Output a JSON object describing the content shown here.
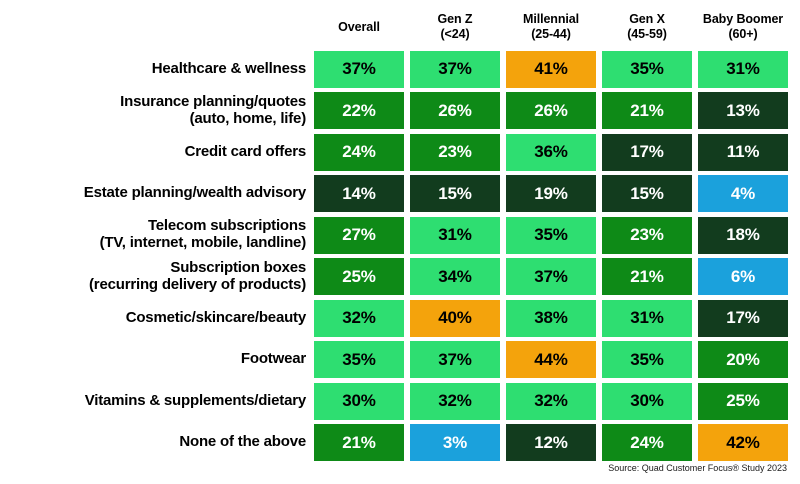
{
  "colors": {
    "background": "#ffffff",
    "tones": {
      "light": {
        "bg": "#2EDE71",
        "fg": "#000000"
      },
      "medium": {
        "bg": "#0E8A17",
        "fg": "#ffffff"
      },
      "dark": {
        "bg": "#123C1E",
        "fg": "#ffffff"
      },
      "blue": {
        "bg": "#1BA1DC",
        "fg": "#ffffff"
      },
      "orange": {
        "bg": "#F4A30C",
        "fg": "#000000"
      }
    }
  },
  "chart_data": {
    "type": "heatmap",
    "title": "",
    "unit": "%",
    "legend_position": "none",
    "columns": [
      {
        "name": "Overall",
        "range": ""
      },
      {
        "name": "Gen Z",
        "range": "(<24)"
      },
      {
        "name": "Millennial",
        "range": "(25-44)"
      },
      {
        "name": "Gen X",
        "range": "(45-59)"
      },
      {
        "name": "Baby Boomer",
        "range": "(60+)"
      }
    ],
    "rows": [
      {
        "label_lines": [
          "Healthcare & wellness"
        ],
        "values": [
          37,
          37,
          41,
          35,
          31
        ],
        "tones": [
          "light",
          "light",
          "orange",
          "light",
          "light"
        ]
      },
      {
        "label_lines": [
          "Insurance planning/quotes",
          "(auto, home, life)"
        ],
        "values": [
          22,
          26,
          26,
          21,
          13
        ],
        "tones": [
          "medium",
          "medium",
          "medium",
          "medium",
          "dark"
        ]
      },
      {
        "label_lines": [
          "Credit card offers"
        ],
        "values": [
          24,
          23,
          36,
          17,
          11
        ],
        "tones": [
          "medium",
          "medium",
          "light",
          "dark",
          "dark"
        ]
      },
      {
        "label_lines": [
          "Estate planning/wealth advisory"
        ],
        "values": [
          14,
          15,
          19,
          15,
          4
        ],
        "tones": [
          "dark",
          "dark",
          "dark",
          "dark",
          "blue"
        ]
      },
      {
        "label_lines": [
          "Telecom subscriptions",
          "(TV, internet, mobile, landline)"
        ],
        "values": [
          27,
          31,
          35,
          23,
          18
        ],
        "tones": [
          "medium",
          "light",
          "light",
          "medium",
          "dark"
        ]
      },
      {
        "label_lines": [
          "Subscription boxes",
          "(recurring delivery of products)"
        ],
        "values": [
          25,
          34,
          37,
          21,
          6
        ],
        "tones": [
          "medium",
          "light",
          "light",
          "medium",
          "blue"
        ]
      },
      {
        "label_lines": [
          "Cosmetic/skincare/beauty"
        ],
        "values": [
          32,
          40,
          38,
          31,
          17
        ],
        "tones": [
          "light",
          "orange",
          "light",
          "light",
          "dark"
        ]
      },
      {
        "label_lines": [
          "Footwear"
        ],
        "values": [
          35,
          37,
          44,
          35,
          20
        ],
        "tones": [
          "light",
          "light",
          "orange",
          "light",
          "medium"
        ]
      },
      {
        "label_lines": [
          "Vitamins & supplements/dietary"
        ],
        "values": [
          30,
          32,
          32,
          30,
          25
        ],
        "tones": [
          "light",
          "light",
          "light",
          "light",
          "medium"
        ]
      },
      {
        "label_lines": [
          "None of the above"
        ],
        "values": [
          21,
          3,
          12,
          24,
          42
        ],
        "tones": [
          "medium",
          "blue",
          "dark",
          "medium",
          "orange"
        ]
      }
    ],
    "source": "Source: Quad Customer Focus® Study 2023"
  }
}
